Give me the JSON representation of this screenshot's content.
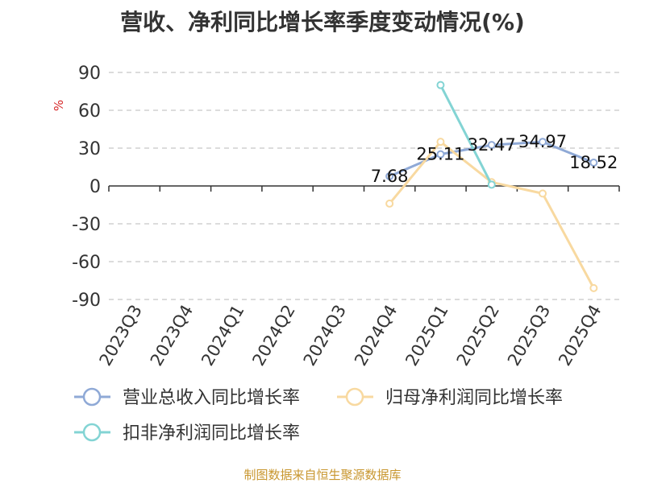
{
  "chart_data": {
    "type": "line",
    "title": "营收、净利同比增长率季度变动情况(%)",
    "ylabel": "%",
    "categories": [
      "2023Q3",
      "2023Q4",
      "2024Q1",
      "2024Q2",
      "2024Q3",
      "2024Q4",
      "2025Q1",
      "2025Q2",
      "2025Q3",
      "2025Q4"
    ],
    "ylim": [
      -90,
      90
    ],
    "yticks": [
      90,
      60,
      30,
      0,
      -30,
      -60,
      -90
    ],
    "grid": true,
    "legend_position": "bottom",
    "series": [
      {
        "name": "营业总收入同比增长率",
        "color": "#8fa9d6",
        "values": [
          null,
          null,
          null,
          null,
          null,
          7.68,
          25.11,
          32.47,
          34.97,
          18.52
        ],
        "labels": [
          "",
          "",
          "",
          "",
          "",
          "7.68",
          "25.11",
          "32.47",
          "34.97",
          "18.52"
        ]
      },
      {
        "name": "归母净利润同比增长率",
        "color": "#f8d9a0",
        "values": [
          null,
          null,
          null,
          null,
          null,
          -14,
          35,
          3,
          -6,
          -81
        ]
      },
      {
        "name": "扣非净利润同比增长率",
        "color": "#83d4d4",
        "values": [
          null,
          null,
          null,
          null,
          null,
          null,
          80,
          1,
          null,
          null
        ]
      }
    ],
    "source": "制图数据来自恒生聚源数据库"
  }
}
